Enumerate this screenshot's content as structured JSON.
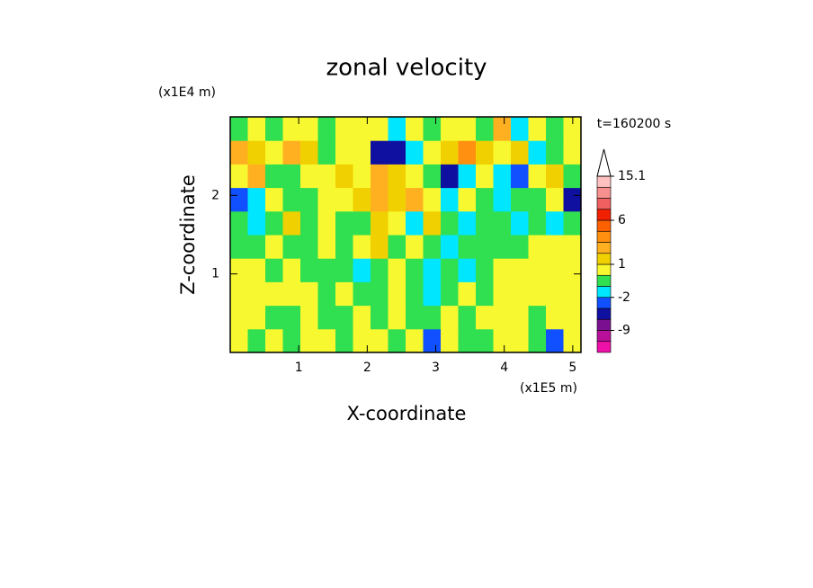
{
  "chart_data": {
    "type": "contour",
    "title": "zonal velocity",
    "x_label": "X-coordinate",
    "y_label": "Z-coordinate",
    "x_unit": "(x1E5 m)",
    "y_unit": "(x1E4 m)",
    "time_label": "t=160200 s",
    "xlim": [
      0,
      5.12
    ],
    "ylim": [
      0,
      3
    ],
    "xticks": [
      1,
      2,
      3,
      4,
      5
    ],
    "yticks": [
      1,
      2
    ],
    "x": [
      0.128,
      0.384,
      0.64,
      0.896,
      1.152,
      1.408,
      1.664,
      1.92,
      2.176,
      2.432,
      2.688,
      2.944,
      3.2,
      3.456,
      3.712,
      3.968,
      4.224,
      4.48,
      4.736,
      4.992
    ],
    "y": [
      0.15,
      0.45,
      0.75,
      1.05,
      1.35,
      1.65,
      1.95,
      2.25,
      2.55,
      2.85
    ],
    "z": [
      [
        0.5,
        -0.5,
        0.5,
        -0.5,
        0.5,
        0.5,
        -0.5,
        0.5,
        0.5,
        -0.5,
        0.5,
        -3,
        0.5,
        -0.5,
        -0.5,
        0.5,
        0.5,
        -0.5,
        -3,
        0.5
      ],
      [
        0.5,
        0.5,
        -0.5,
        -0.5,
        0.5,
        -0.5,
        -0.5,
        0.5,
        -0.5,
        0.5,
        -0.5,
        -0.5,
        0.5,
        -0.5,
        0.5,
        0.5,
        0.5,
        -0.5,
        0.5,
        0.5
      ],
      [
        0.5,
        0.5,
        0.5,
        0.5,
        0.5,
        -0.5,
        0.5,
        -0.5,
        -0.5,
        0.5,
        -0.5,
        -1.5,
        -0.5,
        0.5,
        -0.5,
        0.5,
        0.5,
        0.5,
        0.5,
        0.5
      ],
      [
        0.5,
        0.5,
        -0.5,
        0.5,
        -0.5,
        -0.5,
        -0.5,
        -1.5,
        -0.5,
        0.5,
        -0.5,
        -1.5,
        -0.5,
        -1.5,
        -0.5,
        0.5,
        0.5,
        0.5,
        0.5,
        0.5
      ],
      [
        -0.5,
        -0.5,
        0.5,
        -0.5,
        -0.5,
        0.5,
        -0.5,
        0.5,
        1.5,
        -0.5,
        0.5,
        -0.5,
        -1.5,
        -0.5,
        -0.5,
        -0.5,
        -0.5,
        0.5,
        0.5,
        0.5
      ],
      [
        -0.5,
        -1.5,
        -0.5,
        1.5,
        -0.5,
        0.5,
        -0.5,
        -0.5,
        1.5,
        0.5,
        -1.5,
        1.5,
        -0.5,
        -1.5,
        -0.5,
        -0.5,
        -1.5,
        -0.5,
        -1.5,
        -0.5
      ],
      [
        -2.5,
        -1.5,
        0.5,
        -0.5,
        -0.5,
        0.5,
        0.5,
        1.5,
        2.5,
        1.5,
        2.5,
        0.5,
        -1.5,
        0.5,
        -0.5,
        -1.5,
        -0.5,
        -0.5,
        0.5,
        -4
      ],
      [
        0.5,
        2.5,
        -0.5,
        -0.5,
        0.5,
        0.5,
        1.5,
        0.5,
        2.5,
        1.5,
        0.5,
        -0.5,
        -4,
        -1.5,
        0.5,
        -1.5,
        -2.5,
        0.5,
        1.5,
        -0.5
      ],
      [
        2.5,
        1.5,
        0.5,
        2.5,
        1.5,
        -0.5,
        0.5,
        0.5,
        -4,
        -4,
        -1.5,
        0.5,
        1.5,
        3.5,
        1.5,
        0.5,
        1.5,
        -1.5,
        -0.5,
        0.5
      ],
      [
        -0.5,
        0.5,
        -0.5,
        0.5,
        0.5,
        -0.5,
        0.5,
        0.5,
        0.5,
        -1.5,
        0.5,
        -0.5,
        0.5,
        0.5,
        -0.5,
        2.5,
        -1.5,
        0.5,
        -0.5,
        0.5
      ]
    ],
    "colorbar": {
      "levels": [
        -15,
        -12,
        -9,
        -6,
        -3,
        -2,
        -1,
        0,
        1,
        2,
        3,
        4,
        6,
        8,
        10,
        12.5,
        15.1
      ],
      "colors": [
        "#ee10a8",
        "#b8109a",
        "#7a1090",
        "#1010a0",
        "#1050ff",
        "#00e6ff",
        "#30e050",
        "#f8f830",
        "#f0d000",
        "#ffb020",
        "#ff9010",
        "#ff6000",
        "#f02000",
        "#f06060",
        "#f89090",
        "#ffc0c0"
      ],
      "ticks": [
        -9,
        -2,
        1,
        6,
        15.1
      ]
    }
  }
}
